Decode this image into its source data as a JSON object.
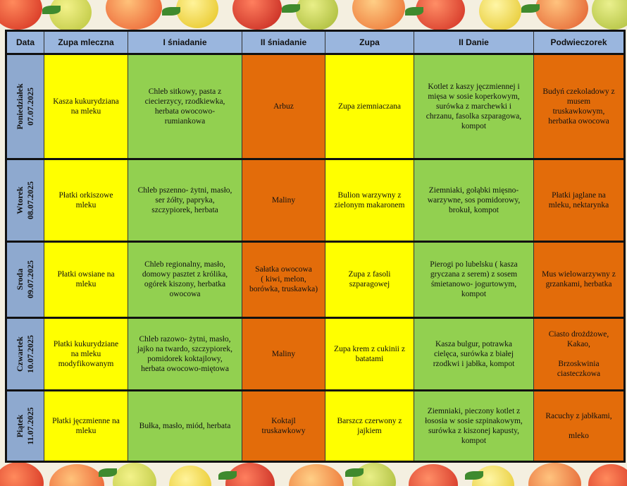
{
  "colors": {
    "header": "#9ab6de",
    "day": "#8ea9cf",
    "yellow": "#ffff00",
    "green": "#92d050",
    "orange": "#e36c0a"
  },
  "headers": [
    "Data",
    "Zupa mleczna",
    "I śniadanie",
    "II śniadanie",
    "Zupa",
    "II Danie",
    "Podwieczorek"
  ],
  "days": [
    {
      "name": "Poniedziałek",
      "date": "07.07.2025",
      "zupa_mleczna": "Kasza kukurydziana\nna mleku",
      "i_sniadanie": "Chleb sitkowy, pasta z\nciecierzycy, rzodkiewka,\nherbata owocowo-\nrumiankowa",
      "ii_sniadanie": "Arbuz",
      "zupa": "Zupa ziemniaczana",
      "ii_danie": "Kotlet z kaszy jęczmiennej i\nmięsa w sosie koperkowym,\nsurówka z marchewki i\nchrzanu, fasolka szparagowa,\nkompot",
      "podwieczorek": "Budyń czekoladowy z\nmusem\ntruskawkowym,\nherbatka owocowa"
    },
    {
      "name": "Wtorek",
      "date": "08.07.2025",
      "zupa_mleczna": "Płatki orkiszowe\nmleku",
      "i_sniadanie": "Chleb pszenno- żytni, masło,\nser żółty, papryka,\nszczypiorek, herbata",
      "ii_sniadanie": "Maliny",
      "zupa": "Bulion warzywny z\nzielonym makaronem",
      "ii_danie": "Ziemniaki, gołąbki mięsno-\nwarzywne, sos pomidorowy,\nbrokuł, kompot",
      "podwieczorek": "Płatki jaglane na\nmleku, nektarynka"
    },
    {
      "name": "Sroda",
      "date": "09.07.2025",
      "zupa_mleczna": "Płatki owsiane na\nmleku",
      "i_sniadanie": "Chleb regionalny, masło,\ndomowy pasztet z królika,\nogórek kiszony, herbatka\nowocowa",
      "ii_sniadanie": "Sałatka owocowa\n( kiwi, melon,\nborówka, truskawka)",
      "zupa": "Zupa z fasoli\nszparagowej",
      "ii_danie": "Pierogi po lubelsku ( kasza\ngryczana z serem) z sosem\nśmietanowo- jogurtowym,\nkompot",
      "podwieczorek": "Mus wielowarzywny z\ngrzankami, herbatka"
    },
    {
      "name": "Czwartek",
      "date": "10.07.2025",
      "zupa_mleczna": "Płatki kukurydziane\nna mleku\nmodyfikowanym",
      "i_sniadanie": "Chleb razowo- żytni, masło,\njajko na twardo, szczypiorek,\npomidorek koktajlowy,\nherbata owocowo-miętowa",
      "ii_sniadanie": "Maliny",
      "zupa": "Zupa krem z cukinii z\nbatatami",
      "ii_danie": "Kasza bulgur, potrawka\ncielęca, surówka z białej\nrzodkwi i jabłka, kompot",
      "podwieczorek": "Ciasto drożdżowe,\nKakao,\n\nBrzoskwinia\nciasteczkowa"
    },
    {
      "name": "Piątek",
      "date": "11.07.2025",
      "zupa_mleczna": "Płatki jęczmienne na\nmleku",
      "i_sniadanie": "Bułka, masło, miód, herbata",
      "ii_sniadanie": "Koktajl\ntruskawkowy",
      "zupa": "Barszcz czerwony z\njajkiem",
      "ii_danie": "Ziemniaki, pieczony kotlet z\nłososia w sosie szpinakowym,\nsurówka z kiszonej kapusty,\nkompot",
      "podwieczorek": "Racuchy z jabłkami,\n\nmleko"
    }
  ]
}
